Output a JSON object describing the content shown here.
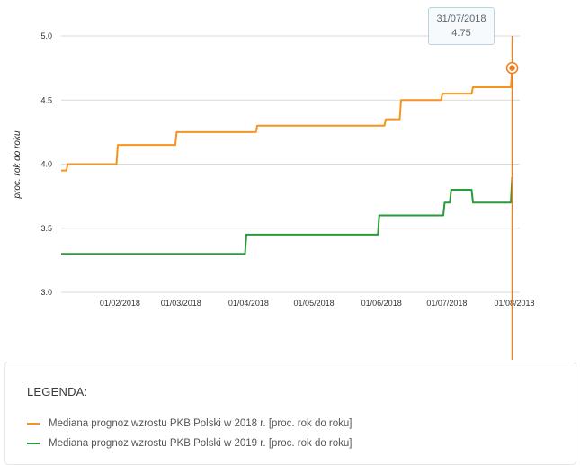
{
  "colors": {
    "series_2018": "#f7941d",
    "series_2019": "#2a9a3a",
    "grid": "#d9d9d9",
    "cursor": "#f07c1b"
  },
  "tooltip": {
    "date": "31/07/2018",
    "value": "4.75"
  },
  "legend": {
    "title": "LEGENDA:",
    "items": [
      {
        "label": "Mediana prognoz wzrostu PKB Polski w 2018 r. [proc. rok do roku]",
        "color": "#f7941d"
      },
      {
        "label": "Mediana prognoz wzrostu PKB Polski w 2019 r. [proc. rok do roku]",
        "color": "#2a9a3a"
      }
    ]
  },
  "chart_data": {
    "type": "line",
    "ylabel": "proc. rok do roku",
    "xlabel": "",
    "x_range": [
      "2018-01-05",
      "2018-08-01"
    ],
    "ylim": [
      3.0,
      5.0
    ],
    "yticks": [
      "3.0",
      "3.5",
      "4.0",
      "4.5",
      "5.0"
    ],
    "xticks": [
      {
        "date": "2018-02-01",
        "label": "01/02/2018"
      },
      {
        "date": "2018-03-01",
        "label": "01/03/2018"
      },
      {
        "date": "2018-04-01",
        "label": "01/04/2018"
      },
      {
        "date": "2018-05-01",
        "label": "01/05/2018"
      },
      {
        "date": "2018-06-01",
        "label": "01/06/2018"
      },
      {
        "date": "2018-07-01",
        "label": "01/07/2018"
      },
      {
        "date": "2018-08-01",
        "label": "01/08/2018"
      }
    ],
    "grid": true,
    "step": true,
    "cursor_date": "2018-07-31",
    "series": [
      {
        "name": "Mediana prognoz wzrostu PKB Polski w 2018 r. [proc. rok do roku]",
        "points": [
          [
            "2018-01-05",
            3.95
          ],
          [
            "2018-01-08",
            4.0
          ],
          [
            "2018-01-31",
            4.15
          ],
          [
            "2018-02-27",
            4.25
          ],
          [
            "2018-04-05",
            4.3
          ],
          [
            "2018-06-03",
            4.35
          ],
          [
            "2018-06-10",
            4.5
          ],
          [
            "2018-06-29",
            4.55
          ],
          [
            "2018-07-13",
            4.6
          ],
          [
            "2018-07-31",
            4.75
          ]
        ]
      },
      {
        "name": "Mediana prognoz wzrostu PKB Polski w 2019 r. [proc. rok do roku]",
        "points": [
          [
            "2018-01-05",
            3.3
          ],
          [
            "2018-03-31",
            3.45
          ],
          [
            "2018-05-31",
            3.6
          ],
          [
            "2018-06-30",
            3.7
          ],
          [
            "2018-07-03",
            3.8
          ],
          [
            "2018-07-13",
            3.7
          ],
          [
            "2018-07-31",
            3.9
          ]
        ]
      }
    ]
  }
}
